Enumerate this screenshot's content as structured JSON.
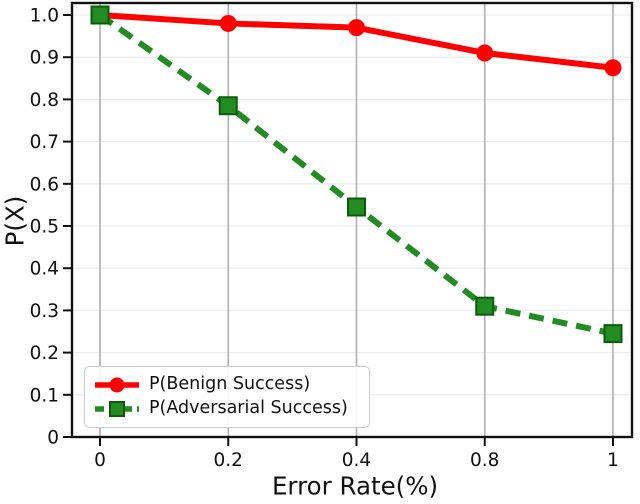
{
  "chart_data": {
    "type": "line",
    "title": "",
    "xlabel": "Error Rate(%)",
    "ylabel": "P(X)",
    "categories": [
      "0",
      "0.2",
      "0.4",
      "0.8",
      "1"
    ],
    "x_axis_note": "categorical, evenly spaced ticks",
    "y_tick_values": [
      0,
      0.1,
      0.2,
      0.3,
      0.4,
      0.5,
      0.6,
      0.7,
      0.8,
      0.9,
      1.0
    ],
    "y_tick_labels": [
      "0",
      "0.1",
      "0.2",
      "0.3",
      "0.4",
      "0.5",
      "0.6",
      "0.7",
      "0.8",
      "0.9",
      "1.0"
    ],
    "ylim": [
      0,
      1.03
    ],
    "grid": {
      "vertical": true,
      "horizontal": true
    },
    "legend": {
      "position": "lower left",
      "items": [
        "P(Benign Success)",
        "P(Adversarial Success)"
      ]
    },
    "series": [
      {
        "name": "P(Benign Success)",
        "color": "#ff0000",
        "marker": "circle",
        "linestyle": "solid",
        "values": [
          1.0,
          0.98,
          0.97,
          0.91,
          0.875
        ]
      },
      {
        "name": "P(Adversarial Success)",
        "color": "#228b22",
        "marker": "square",
        "marker_edge_color": "#0a5c0a",
        "linestyle": "dashed",
        "values": [
          1.0,
          0.785,
          0.545,
          0.31,
          0.245
        ]
      }
    ]
  },
  "colors": {
    "background": "#ffffff",
    "axis": "#111111",
    "text": "#111111",
    "vertical_grid": "#b3b3b3",
    "horizontal_grid": "#e9eef0",
    "legend_border": "#cccccc"
  }
}
